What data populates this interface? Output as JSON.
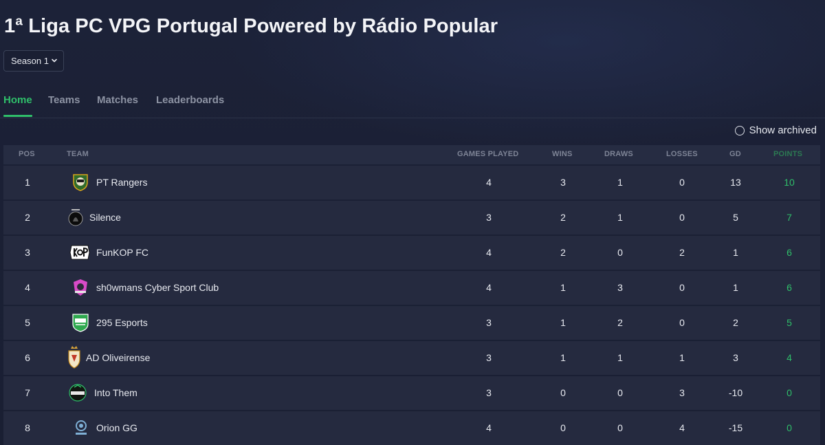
{
  "title": "1ª Liga PC VPG Portugal Powered by Rádio Popular",
  "season_select": {
    "value": "Season 1"
  },
  "tabs": [
    {
      "label": "Home",
      "active": true
    },
    {
      "label": "Teams",
      "active": false
    },
    {
      "label": "Matches",
      "active": false
    },
    {
      "label": "Leaderboards",
      "active": false
    }
  ],
  "show_archived_label": "Show archived",
  "table": {
    "headers": {
      "pos": "POS",
      "team": "TEAM",
      "games_played": "GAMES PLAYED",
      "wins": "WINS",
      "draws": "DRAWS",
      "losses": "LOSSES",
      "gd": "GD",
      "points": "POINTS"
    },
    "rows": [
      {
        "pos": "1",
        "team": "PT Rangers",
        "gp": "4",
        "w": "3",
        "d": "1",
        "l": "0",
        "gd": "13",
        "pts": "10",
        "logo": "pt-rangers-logo"
      },
      {
        "pos": "2",
        "team": "Silence",
        "gp": "3",
        "w": "2",
        "d": "1",
        "l": "0",
        "gd": "5",
        "pts": "7",
        "logo": "silence-logo"
      },
      {
        "pos": "3",
        "team": "FunKOP FC",
        "gp": "4",
        "w": "2",
        "d": "0",
        "l": "2",
        "gd": "1",
        "pts": "6",
        "logo": "funkop-logo"
      },
      {
        "pos": "4",
        "team": "sh0wmans Cyber Sport Club",
        "gp": "4",
        "w": "1",
        "d": "3",
        "l": "0",
        "gd": "1",
        "pts": "6",
        "logo": "showmans-logo"
      },
      {
        "pos": "5",
        "team": "295 Esports",
        "gp": "3",
        "w": "1",
        "d": "2",
        "l": "0",
        "gd": "2",
        "pts": "5",
        "logo": "295-esports-logo"
      },
      {
        "pos": "6",
        "team": "AD Oliveirense",
        "gp": "3",
        "w": "1",
        "d": "1",
        "l": "1",
        "gd": "3",
        "pts": "4",
        "logo": "ad-oliveirense-logo"
      },
      {
        "pos": "7",
        "team": "Into Them",
        "gp": "3",
        "w": "0",
        "d": "0",
        "l": "3",
        "gd": "-10",
        "pts": "0",
        "logo": "into-them-logo"
      },
      {
        "pos": "8",
        "team": "Orion GG",
        "gp": "4",
        "w": "0",
        "d": "0",
        "l": "4",
        "gd": "-15",
        "pts": "0",
        "logo": "orion-gg-logo"
      }
    ]
  },
  "colors": {
    "accent": "#2fbf6a",
    "background": "#1a1f33",
    "row": "#252a3f",
    "header": "#262c42"
  }
}
